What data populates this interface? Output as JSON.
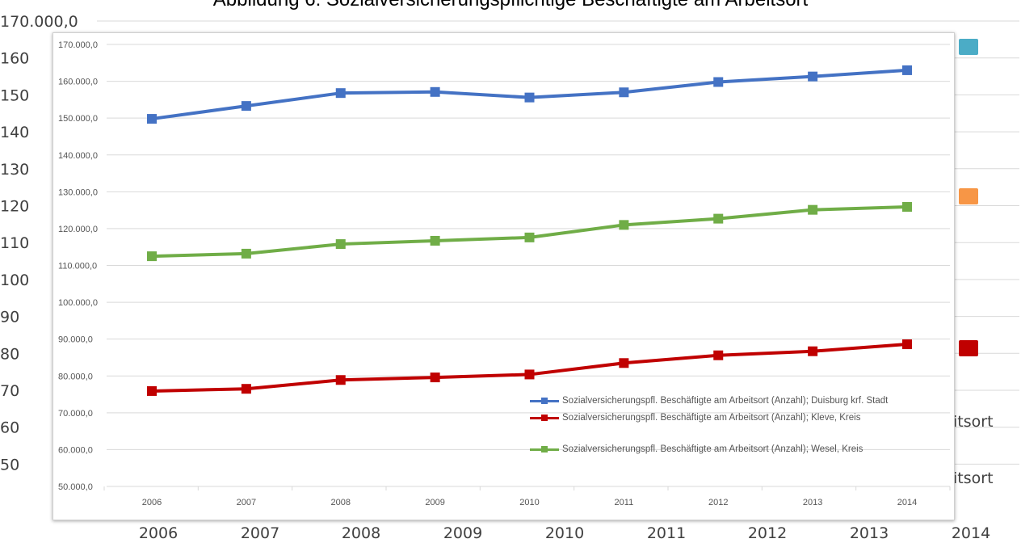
{
  "background_chart": {
    "title": "Abbildung 6: Sozialversicherungspflichtige Beschäftigte am Arbeitsort",
    "y_ticks": [
      "170.000,0",
      "160",
      "150",
      "140",
      "130",
      "120",
      "110",
      "100",
      "90",
      "80",
      "70",
      "60",
      "50"
    ],
    "x_ticks": [
      "2006",
      "2007",
      "2008",
      "2009",
      "2010",
      "2011",
      "2012",
      "2013",
      "2014"
    ],
    "legend_fragments": [
      "itsort",
      "itsort"
    ],
    "marker_colors": [
      "#4bacc6",
      "#f79646",
      "#c00000"
    ]
  },
  "chart_data": {
    "type": "line",
    "x": [
      "2006",
      "2007",
      "2008",
      "2009",
      "2010",
      "2011",
      "2012",
      "2013",
      "2014"
    ],
    "y_ticks": [
      "50.000,0",
      "60.000,0",
      "70.000,0",
      "80.000,0",
      "90.000,0",
      "100.000,0",
      "110.000,0",
      "120.000,0",
      "130.000,0",
      "140.000,0",
      "150.000,0",
      "160.000,0",
      "170.000,0"
    ],
    "ylim": [
      50000,
      170000
    ],
    "grid": true,
    "legend_position": "bottom-right inside",
    "series": [
      {
        "name": "Sozialversicherungspfl. Beschäftigte am Arbeitsort (Anzahl); Duisburg krf. Stadt",
        "color": "#4472c4",
        "values": [
          149800,
          153300,
          156800,
          157100,
          155600,
          157000,
          159800,
          161300,
          163000
        ]
      },
      {
        "name": "Sozialversicherungspfl. Beschäftigte am Arbeitsort (Anzahl); Kleve, Kreis",
        "color": "#c00000",
        "values": [
          75900,
          76500,
          78900,
          79600,
          80400,
          83500,
          85600,
          86700,
          88600
        ]
      },
      {
        "name": "Sozialversicherungspfl. Beschäftigte am Arbeitsort (Anzahl); Wesel, Kreis",
        "color": "#70ad47",
        "values": [
          112500,
          113200,
          115800,
          116700,
          117600,
          121000,
          122700,
          125100,
          125900
        ]
      }
    ]
  }
}
